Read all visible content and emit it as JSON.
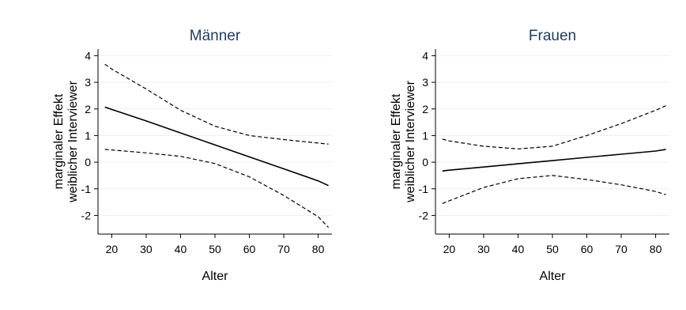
{
  "chart_data": [
    {
      "type": "line",
      "title": "Männer",
      "xlabel": "Alter",
      "ylabel": [
        "marginaler Effekt",
        "weiblicher Interviewer"
      ],
      "xlim": [
        16,
        84
      ],
      "ylim": [
        -2.7,
        4.25
      ],
      "xticks": [
        20,
        30,
        40,
        50,
        60,
        70,
        80
      ],
      "yticks": [
        -2,
        -1,
        0,
        1,
        2,
        3,
        4
      ],
      "grid": true,
      "x": [
        18,
        20,
        30,
        40,
        50,
        60,
        70,
        80,
        83
      ],
      "series": [
        {
          "style": "solid",
          "values": [
            2.07,
            1.98,
            1.55,
            1.1,
            0.65,
            0.2,
            -0.25,
            -0.7,
            -0.88
          ]
        },
        {
          "style": "dashed",
          "values": [
            3.68,
            3.5,
            2.75,
            1.95,
            1.35,
            1.0,
            0.85,
            0.72,
            0.68
          ]
        },
        {
          "style": "dashed",
          "values": [
            0.48,
            0.46,
            0.35,
            0.22,
            -0.05,
            -0.55,
            -1.25,
            -2.05,
            -2.45
          ]
        }
      ]
    },
    {
      "type": "line",
      "title": "Frauen",
      "xlabel": "Alter",
      "ylabel": [
        "marginaler Effekt",
        "weiblicher Interviewer"
      ],
      "xlim": [
        16,
        84
      ],
      "ylim": [
        -2.7,
        4.25
      ],
      "xticks": [
        20,
        30,
        40,
        50,
        60,
        70,
        80
      ],
      "yticks": [
        -2,
        -1,
        0,
        1,
        2,
        3,
        4
      ],
      "grid": true,
      "x": [
        18,
        20,
        30,
        40,
        50,
        60,
        70,
        80,
        83
      ],
      "series": [
        {
          "style": "solid",
          "values": [
            -0.33,
            -0.3,
            -0.18,
            -0.06,
            0.06,
            0.18,
            0.3,
            0.42,
            0.48
          ]
        },
        {
          "style": "dashed",
          "values": [
            0.87,
            0.8,
            0.6,
            0.5,
            0.6,
            1.0,
            1.45,
            1.95,
            2.12
          ]
        },
        {
          "style": "dashed",
          "values": [
            -1.55,
            -1.45,
            -0.95,
            -0.62,
            -0.5,
            -0.65,
            -0.85,
            -1.1,
            -1.22
          ]
        }
      ]
    }
  ]
}
